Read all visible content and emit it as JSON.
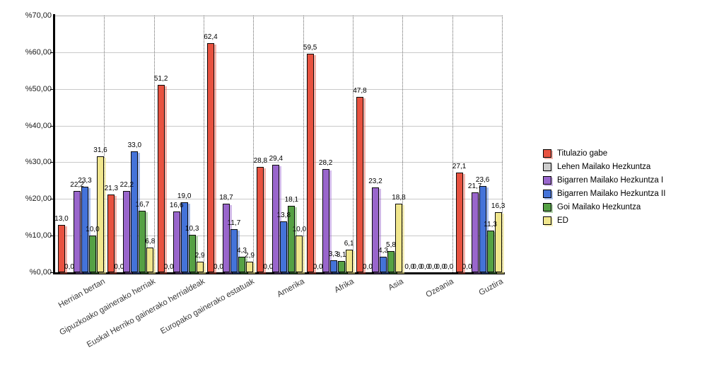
{
  "chart_data": {
    "type": "bar",
    "title": "",
    "legend_position": "right",
    "value_label_decimal_separator": ",",
    "y_axis": {
      "ylim": [
        0,
        70
      ],
      "tick_values": [
        70,
        60,
        50,
        40,
        30,
        20,
        10,
        0
      ],
      "tick_labels": [
        "%70,00",
        "%60,00",
        "%50,00",
        "%40,00",
        "%30,00",
        "%20,00",
        "%10,00",
        "%0,00"
      ],
      "grid": "horizontal solid lines, vertical dotted category separators"
    },
    "x_axis": {
      "label_rotation_deg": -29
    },
    "categories": [
      "Herrian bertan",
      "Gipuzkoako gainerako herriak",
      "Euskal Herriko gainerako herrialdeak",
      "Europako gainerako estatuak",
      "Amerika",
      "Afrika",
      "Asia",
      "Ozeania",
      "Guztira"
    ],
    "series": [
      {
        "name": "Titulazio gabe",
        "color": "#E85240",
        "shadow_color": "rgba(235,90,70,0.45)",
        "values": [
          13.0,
          21.3,
          51.2,
          62.4,
          28.8,
          59.5,
          47.8,
          0.0,
          27.1
        ]
      },
      {
        "name": "Lehen Mailako Hezkuntza",
        "color": "#CCCCCC",
        "shadow_color": "rgba(204,204,204,0.5)",
        "values": [
          0.0,
          0.0,
          0.0,
          0.0,
          0.0,
          0.0,
          0.0,
          0.0,
          0.0
        ]
      },
      {
        "name": "Bigarren Mailako Hezkuntza I",
        "color": "#9966CC",
        "shadow_color": "rgba(153,102,204,0.45)",
        "values": [
          22.2,
          22.2,
          16.6,
          18.7,
          29.4,
          28.2,
          23.2,
          0.0,
          21.7
        ]
      },
      {
        "name": "Bigarren Mailako Hezkuntza II",
        "color": "#4473D9",
        "shadow_color": "rgba(68,115,217,0.45)",
        "values": [
          23.3,
          33.0,
          19.0,
          11.7,
          13.8,
          3.3,
          4.3,
          0.0,
          23.6
        ]
      },
      {
        "name": "Goi Mailako Hezkuntza",
        "color": "#55A144",
        "shadow_color": "rgba(85,161,68,0.45)",
        "values": [
          10.0,
          16.7,
          10.3,
          4.3,
          18.1,
          3.1,
          5.8,
          0.0,
          11.3
        ]
      },
      {
        "name": "ED",
        "color": "#F0E68C",
        "shadow_color": "rgba(240,230,140,0.6)",
        "values": [
          31.6,
          6.8,
          2.9,
          2.9,
          10.0,
          6.1,
          18.8,
          0.0,
          16.3
        ]
      }
    ]
  }
}
